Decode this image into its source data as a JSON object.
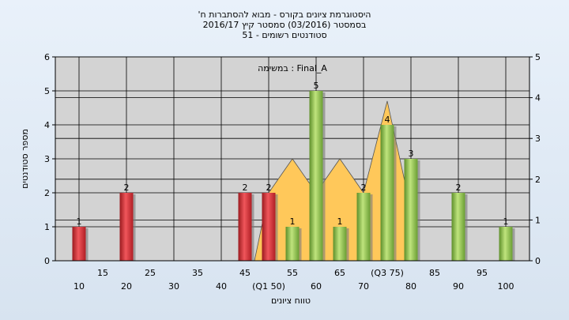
{
  "chart_data": {
    "type": "bar",
    "title_lines": [
      "'היסטוגרמת ציונים בקורס - מבוא להסתברות ח",
      "בסמסטר  (03/2016)  סמסטר קיץ 2016/17",
      "51 - סטודנטים רשומים"
    ],
    "annotation": "במשימה : Final_A",
    "xlabel": "טווח ציונים",
    "ylabel": "מספר סטודנטים",
    "ylim": [
      0,
      6
    ],
    "y_ticks": [
      "0",
      "1",
      "2",
      "3",
      "4",
      "5",
      "6"
    ],
    "y2lim": [
      0,
      5
    ],
    "y2_ticks": [
      "0",
      "1",
      "2",
      "3",
      "4",
      "5"
    ],
    "x_ticks_lower": [
      "10",
      "20",
      "30",
      "40",
      "(Q1 50)",
      "60",
      "70",
      "80",
      "90",
      "100"
    ],
    "x_ticks_upper": [
      "15",
      "25",
      "35",
      "45",
      "55",
      "65",
      "(Q3 75)",
      "85",
      "95"
    ],
    "bars": [
      {
        "x": 10,
        "value": 1,
        "label": "1",
        "color": "red"
      },
      {
        "x": 20,
        "value": 2,
        "label": "2",
        "color": "red"
      },
      {
        "x": 45,
        "value": 2,
        "label": "2",
        "color": "red"
      },
      {
        "x": 50,
        "value": 2,
        "label": "2",
        "color": "red"
      },
      {
        "x": 55,
        "value": 1,
        "label": "1",
        "color": "green"
      },
      {
        "x": 60,
        "value": 5,
        "label": "5",
        "color": "green"
      },
      {
        "x": 65,
        "value": 1,
        "label": "1",
        "color": "green"
      },
      {
        "x": 70,
        "value": 2,
        "label": "2",
        "color": "green"
      },
      {
        "x": 75,
        "value": 4,
        "label": "4",
        "color": "green"
      },
      {
        "x": 80,
        "value": 3,
        "label": "3",
        "color": "green"
      },
      {
        "x": 90,
        "value": 2,
        "label": "2",
        "color": "green"
      },
      {
        "x": 100,
        "value": 1,
        "label": "1",
        "color": "green"
      }
    ],
    "distribution_area": [
      {
        "x": 47,
        "y": 0
      },
      {
        "x": 50,
        "y": 2
      },
      {
        "x": 55,
        "y": 3
      },
      {
        "x": 60,
        "y": 2
      },
      {
        "x": 65,
        "y": 3
      },
      {
        "x": 70,
        "y": 2
      },
      {
        "x": 75,
        "y": 4.7
      },
      {
        "x": 80,
        "y": 1.5
      },
      {
        "x": 80,
        "y": 0
      }
    ],
    "colors": {
      "red": "#e8333a",
      "green": "#9dd15a",
      "area": "#ffc85a",
      "plot_bg": "#d3d3d3"
    },
    "grid": true
  }
}
